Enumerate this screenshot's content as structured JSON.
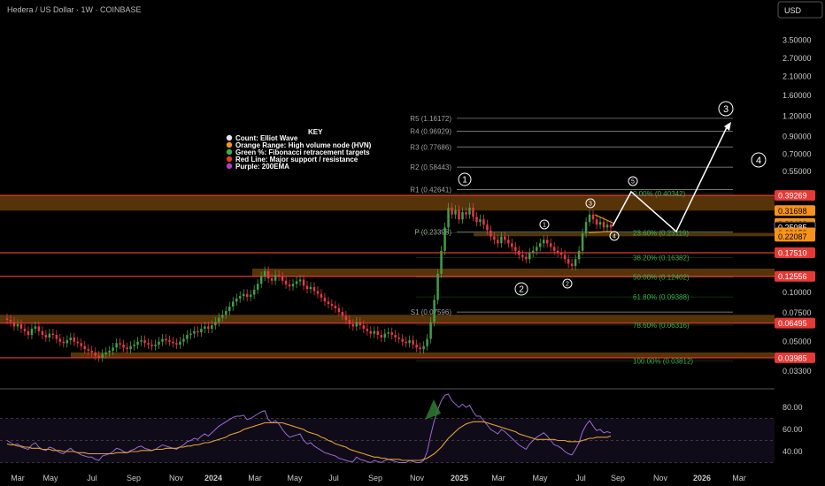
{
  "header": {
    "symbol_title": "Hedera / US Dollar · 1W · COINBASE",
    "currency_button": "USD"
  },
  "legend_key": {
    "title": "KEY",
    "items": [
      {
        "label": "Count: Elliot Wave",
        "color": "#e6e6e6"
      },
      {
        "label": "Orange Range: High volume node (HVN)",
        "color": "#f7931a"
      },
      {
        "label": "Green %: Fibonacci retracement targets",
        "color": "#3fae49"
      },
      {
        "label": "Red Line: Major support / resistance",
        "color": "#e53935"
      },
      {
        "label": "Purple: 200EMA",
        "color": "#b03fc4"
      }
    ]
  },
  "colors": {
    "background": "#000000",
    "up_candle": "#43a047",
    "down_candle": "#e53946",
    "support_line": "#e53935",
    "hvn_zone": "#f7931a",
    "fib_text": "#3fae49",
    "pivot_line": "#9a9a9a",
    "rsi_line": "#9c6ad6",
    "rsi_ma": "#e0a030",
    "projection": "#ffffff"
  },
  "chart_data": [
    {
      "type": "candlestick",
      "title": "Hedera / US Dollar · 1W · COINBASE",
      "scale": "log",
      "ylim": [
        0.028,
        4.6
      ],
      "y_ticks": [
        "3.50000",
        "2.70000",
        "2.10000",
        "1.60000",
        "1.20000",
        "0.90000",
        "0.70000",
        "0.55000",
        "0.40000",
        "0.31698",
        "0.26460",
        "0.25085",
        "0.23153",
        "0.22087",
        "0.17510",
        "0.12556",
        "0.10000",
        "0.07500",
        "0.06495",
        "0.05000",
        "0.03985",
        "0.03300"
      ],
      "y_tick_values": [
        3.5,
        2.7,
        2.1,
        1.6,
        1.2,
        0.9,
        0.7,
        0.55,
        0.4,
        0.31698,
        0.2646,
        0.25085,
        0.23153,
        0.22087,
        0.1751,
        0.12556,
        0.1,
        0.075,
        0.06495,
        0.05,
        0.03985,
        0.033
      ],
      "price_tags": [
        {
          "text": "0.39269",
          "value": 0.39269,
          "color": "#e53935"
        },
        {
          "text": "0.31698",
          "value": 0.31698,
          "color": "#f7931a"
        },
        {
          "text": "0.26460",
          "value": 0.2646,
          "color": "#f7931a"
        },
        {
          "text": "0.25085",
          "value": 0.25085,
          "color": "#000000"
        },
        {
          "text": "0.23153",
          "value": 0.23153,
          "color": "#f7931a"
        },
        {
          "text": "0.22087",
          "value": 0.22087,
          "color": "#f7931a"
        },
        {
          "text": "0.17510",
          "value": 0.1751,
          "color": "#e53935"
        },
        {
          "text": "0.12556",
          "value": 0.12556,
          "color": "#e53935"
        },
        {
          "text": "0.06495",
          "value": 0.06495,
          "color": "#e53935"
        },
        {
          "text": "0.03985",
          "value": 0.03985,
          "color": "#e53935"
        }
      ],
      "x_labels": [
        "Mar",
        "May",
        "Jul",
        "Sep",
        "Nov",
        "2024",
        "Mar",
        "May",
        "Jul",
        "Sep",
        "Nov",
        "2025",
        "Mar",
        "May",
        "Jul",
        "Sep",
        "Nov",
        "2026",
        "Mar"
      ],
      "x_bold": [
        "2024",
        "2025",
        "2026"
      ],
      "support_resistance": [
        0.39269,
        0.1751,
        0.12556,
        0.06495,
        0.03985
      ],
      "hvn_zones": [
        {
          "from": 0.31698,
          "to": 0.39269
        },
        {
          "from": 0.22087,
          "to": 0.23153
        },
        {
          "from": 0.12556,
          "to": 0.14
        },
        {
          "from": 0.06495,
          "to": 0.073
        },
        {
          "from": 0.03985,
          "to": 0.043
        }
      ],
      "pivots": [
        {
          "label": "R5 (1.16172)",
          "value": 1.16172
        },
        {
          "label": "R4 (0.96929)",
          "value": 0.96929
        },
        {
          "label": "R3 (0.77686)",
          "value": 0.77686
        },
        {
          "label": "R2 (0.58443)",
          "value": 0.58443
        },
        {
          "label": "R1 (0.42641)",
          "value": 0.42641
        },
        {
          "label": "P (0.23398)",
          "value": 0.23398
        },
        {
          "label": "S1 (0.07596)",
          "value": 0.07596
        }
      ],
      "fib_levels": [
        {
          "label": "0.00% (0.40342)",
          "value": 0.40342
        },
        {
          "label": "23.60% (0.23119)",
          "value": 0.23119
        },
        {
          "label": "38.20% (0.16382)",
          "value": 0.16382
        },
        {
          "label": "50.00% (0.12402)",
          "value": 0.12402
        },
        {
          "label": "61.80% (0.09388)",
          "value": 0.09388
        },
        {
          "label": "78.60% (0.06316)",
          "value": 0.06316
        },
        {
          "label": "100.00% (0.03812)",
          "value": 0.03812
        }
      ],
      "wave_labels": [
        "1",
        "2",
        "1",
        "2",
        "3",
        "4",
        "5",
        "3",
        "4"
      ],
      "closes": [
        0.068,
        0.066,
        0.062,
        0.064,
        0.06,
        0.058,
        0.055,
        0.06,
        0.062,
        0.058,
        0.055,
        0.053,
        0.056,
        0.055,
        0.052,
        0.05,
        0.049,
        0.051,
        0.053,
        0.05,
        0.049,
        0.047,
        0.045,
        0.044,
        0.043,
        0.041,
        0.04,
        0.042,
        0.043,
        0.044,
        0.046,
        0.049,
        0.048,
        0.046,
        0.045,
        0.047,
        0.048,
        0.05,
        0.051,
        0.049,
        0.048,
        0.047,
        0.048,
        0.05,
        0.052,
        0.051,
        0.05,
        0.049,
        0.048,
        0.05,
        0.052,
        0.055,
        0.056,
        0.058,
        0.057,
        0.06,
        0.062,
        0.06,
        0.063,
        0.066,
        0.07,
        0.073,
        0.077,
        0.082,
        0.088,
        0.092,
        0.095,
        0.098,
        0.094,
        0.097,
        0.104,
        0.113,
        0.125,
        0.135,
        0.122,
        0.118,
        0.128,
        0.125,
        0.118,
        0.112,
        0.109,
        0.113,
        0.117,
        0.12,
        0.11,
        0.105,
        0.108,
        0.102,
        0.098,
        0.093,
        0.088,
        0.085,
        0.083,
        0.08,
        0.076,
        0.072,
        0.068,
        0.064,
        0.062,
        0.066,
        0.063,
        0.06,
        0.058,
        0.056,
        0.058,
        0.055,
        0.053,
        0.056,
        0.057,
        0.055,
        0.053,
        0.052,
        0.05,
        0.049,
        0.051,
        0.048,
        0.046,
        0.045,
        0.047,
        0.052,
        0.066,
        0.09,
        0.13,
        0.18,
        0.25,
        0.33,
        0.3,
        0.32,
        0.28,
        0.31,
        0.3,
        0.33,
        0.29,
        0.27,
        0.28,
        0.26,
        0.24,
        0.22,
        0.21,
        0.2,
        0.22,
        0.21,
        0.2,
        0.19,
        0.18,
        0.17,
        0.165,
        0.16,
        0.175,
        0.18,
        0.19,
        0.2,
        0.21,
        0.2,
        0.19,
        0.18,
        0.175,
        0.17,
        0.16,
        0.15,
        0.145,
        0.16,
        0.18,
        0.23,
        0.27,
        0.3,
        0.28,
        0.26,
        0.27,
        0.25,
        0.26,
        0.25
      ],
      "rsi": [
        50,
        48,
        46,
        47,
        44,
        43,
        42,
        46,
        48,
        44,
        42,
        41,
        44,
        43,
        41,
        39,
        38,
        41,
        43,
        40,
        39,
        37,
        36,
        35,
        35,
        33,
        32,
        36,
        37,
        38,
        40,
        43,
        42,
        40,
        39,
        41,
        42,
        44,
        45,
        43,
        42,
        41,
        42,
        44,
        46,
        45,
        44,
        43,
        42,
        44,
        46,
        49,
        50,
        52,
        51,
        54,
        56,
        54,
        57,
        60,
        63,
        65,
        67,
        69,
        71,
        72,
        72,
        73,
        69,
        70,
        72,
        74,
        76,
        77,
        69,
        66,
        68,
        65,
        60,
        56,
        53,
        54,
        55,
        56,
        50,
        47,
        48,
        45,
        43,
        41,
        39,
        38,
        37,
        36,
        34,
        33,
        32,
        31,
        31,
        35,
        33,
        32,
        31,
        30,
        32,
        31,
        30,
        32,
        33,
        32,
        31,
        30,
        30,
        30,
        32,
        31,
        30,
        30,
        32,
        40,
        55,
        68,
        78,
        86,
        91,
        92,
        86,
        83,
        80,
        83,
        80,
        82,
        76,
        72,
        72,
        68,
        64,
        60,
        58,
        56,
        60,
        58,
        55,
        52,
        49,
        46,
        44,
        42,
        47,
        50,
        53,
        55,
        57,
        54,
        50,
        46,
        45,
        43,
        40,
        38,
        37,
        42,
        48,
        58,
        64,
        68,
        63,
        59,
        60,
        57,
        58,
        57
      ],
      "rsi_ma": [
        47,
        46,
        46,
        45,
        45,
        44,
        44,
        43,
        43,
        43,
        42,
        42,
        42,
        41,
        41,
        41,
        40,
        40,
        40,
        40,
        39,
        39,
        39,
        38,
        38,
        38,
        38,
        38,
        38,
        38,
        38,
        39,
        39,
        39,
        39,
        40,
        40,
        40,
        41,
        41,
        41,
        41,
        42,
        42,
        42,
        43,
        43,
        43,
        43,
        44,
        44,
        45,
        45,
        46,
        46,
        47,
        48,
        48,
        49,
        50,
        51,
        52,
        53,
        55,
        56,
        57,
        58,
        60,
        61,
        62,
        63,
        64,
        65,
        66,
        66,
        66,
        66,
        66,
        66,
        65,
        64,
        63,
        62,
        61,
        60,
        58,
        57,
        56,
        55,
        53,
        52,
        50,
        49,
        47,
        46,
        45,
        44,
        42,
        41,
        40,
        39,
        38,
        37,
        36,
        35,
        35,
        34,
        34,
        33,
        33,
        33,
        33,
        32,
        32,
        32,
        32,
        32,
        32,
        33,
        34,
        36,
        38,
        41,
        44,
        48,
        52,
        55,
        58,
        61,
        63,
        65,
        66,
        67,
        67,
        67,
        67,
        66,
        65,
        64,
        63,
        62,
        61,
        60,
        59,
        58,
        56,
        55,
        54,
        53,
        52,
        51,
        51,
        51,
        51,
        51,
        51,
        50,
        50,
        50,
        49,
        49,
        49,
        49,
        50,
        51,
        52,
        52,
        53,
        53,
        53,
        53,
        54
      ],
      "rsi_ticks": [
        "80.00",
        "60.00",
        "40.00"
      ],
      "rsi_tick_values": [
        80,
        60,
        40
      ]
    }
  ]
}
